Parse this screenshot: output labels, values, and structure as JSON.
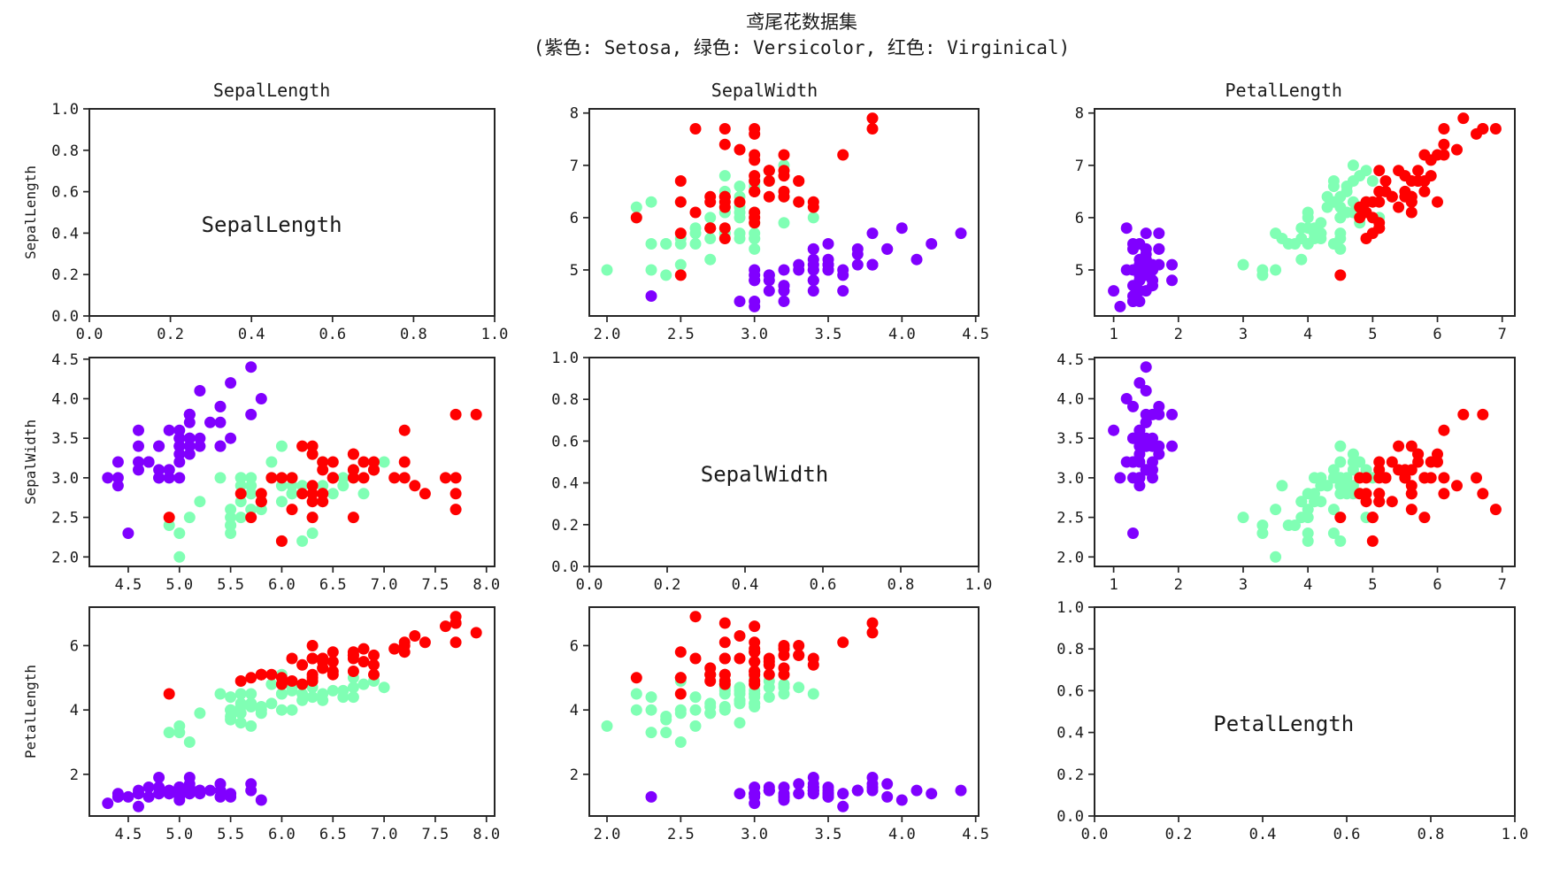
{
  "figure": {
    "background": "#ffffff",
    "text_color": "#1a1a1a",
    "axis_color": "#262626"
  },
  "chart_data": {
    "type": "scatter",
    "variant": "pairplot-matrix-3x3",
    "title": "鸢尾花数据集",
    "subtitle": "(紫色: Setosa, 绿色: Versicolor, 红色: Virginical)",
    "features": [
      "SepalLength",
      "SepalWidth",
      "PetalLength"
    ],
    "column_titles": [
      "SepalLength",
      "SepalWidth",
      "PetalLength"
    ],
    "row_labels": [
      "SepalLength",
      "SepalWidth",
      "PetalLength"
    ],
    "diagonal_labels": [
      "SepalLength",
      "SepalWidth",
      "PetalLength"
    ],
    "grid": "off",
    "legend_position": "none (colors explained in subtitle)",
    "marker_radius": 6.5,
    "axes": {
      "SepalLength": {
        "lim": [
          4.12,
          8.08
        ],
        "xticks": [
          4.5,
          5.0,
          5.5,
          6.0,
          6.5,
          7.0,
          7.5,
          8.0
        ],
        "xtick_labels": [
          "4.5",
          "5.0",
          "5.5",
          "6.0",
          "6.5",
          "7.0",
          "7.5",
          "8.0"
        ],
        "yticks": [
          5,
          6,
          7,
          8
        ],
        "ytick_labels": [
          "5",
          "6",
          "7",
          "8"
        ]
      },
      "SepalWidth": {
        "lim": [
          1.88,
          4.52
        ],
        "xticks": [
          2.0,
          2.5,
          3.0,
          3.5,
          4.0,
          4.5
        ],
        "xtick_labels": [
          "2.0",
          "2.5",
          "3.0",
          "3.5",
          "4.0",
          "4.5"
        ],
        "yticks": [
          2.0,
          2.5,
          3.0,
          3.5,
          4.0,
          4.5
        ],
        "ytick_labels": [
          "2.0",
          "2.5",
          "3.0",
          "3.5",
          "4.0",
          "4.5"
        ]
      },
      "PetalLength": {
        "lim": [
          0.705,
          7.195
        ],
        "xticks": [
          1,
          2,
          3,
          4,
          5,
          6,
          7
        ],
        "xtick_labels": [
          "1",
          "2",
          "3",
          "4",
          "5",
          "6",
          "7"
        ],
        "yticks": [
          2,
          4,
          6
        ],
        "ytick_labels": [
          "2",
          "4",
          "6"
        ]
      },
      "diagonal": {
        "lim": [
          0.0,
          1.0
        ],
        "ticks": [
          0.0,
          0.2,
          0.4,
          0.6,
          0.8,
          1.0
        ],
        "tick_labels": [
          "0.0",
          "0.2",
          "0.4",
          "0.6",
          "0.8",
          "1.0"
        ]
      }
    },
    "point_columns": [
      "SepalLength",
      "SepalWidth",
      "PetalLength"
    ],
    "series": [
      {
        "name": "Setosa",
        "color": "#8000FF",
        "points": [
          [
            5.1,
            3.5,
            1.4
          ],
          [
            4.9,
            3.0,
            1.4
          ],
          [
            4.7,
            3.2,
            1.3
          ],
          [
            4.6,
            3.1,
            1.5
          ],
          [
            5.0,
            3.6,
            1.4
          ],
          [
            5.4,
            3.9,
            1.7
          ],
          [
            4.6,
            3.4,
            1.4
          ],
          [
            5.0,
            3.4,
            1.5
          ],
          [
            4.4,
            2.9,
            1.4
          ],
          [
            4.9,
            3.1,
            1.5
          ],
          [
            5.4,
            3.7,
            1.5
          ],
          [
            4.8,
            3.4,
            1.6
          ],
          [
            4.8,
            3.0,
            1.4
          ],
          [
            4.3,
            3.0,
            1.1
          ],
          [
            5.8,
            4.0,
            1.2
          ],
          [
            5.7,
            4.4,
            1.5
          ],
          [
            5.4,
            3.9,
            1.3
          ],
          [
            5.1,
            3.5,
            1.4
          ],
          [
            5.7,
            3.8,
            1.7
          ],
          [
            5.1,
            3.8,
            1.5
          ],
          [
            5.4,
            3.4,
            1.7
          ],
          [
            5.1,
            3.7,
            1.5
          ],
          [
            4.6,
            3.6,
            1.0
          ],
          [
            5.1,
            3.3,
            1.7
          ],
          [
            4.8,
            3.4,
            1.9
          ],
          [
            5.0,
            3.0,
            1.6
          ],
          [
            5.0,
            3.4,
            1.6
          ],
          [
            5.2,
            3.5,
            1.5
          ],
          [
            5.2,
            3.4,
            1.4
          ],
          [
            4.7,
            3.2,
            1.6
          ],
          [
            4.8,
            3.1,
            1.6
          ],
          [
            5.4,
            3.4,
            1.5
          ],
          [
            5.2,
            4.1,
            1.5
          ],
          [
            5.5,
            4.2,
            1.4
          ],
          [
            4.9,
            3.1,
            1.5
          ],
          [
            5.0,
            3.2,
            1.2
          ],
          [
            5.5,
            3.5,
            1.3
          ],
          [
            4.9,
            3.6,
            1.4
          ],
          [
            4.4,
            3.0,
            1.3
          ],
          [
            5.1,
            3.4,
            1.5
          ],
          [
            5.0,
            3.5,
            1.3
          ],
          [
            4.5,
            2.3,
            1.3
          ],
          [
            4.4,
            3.2,
            1.3
          ],
          [
            5.0,
            3.5,
            1.6
          ],
          [
            5.1,
            3.8,
            1.9
          ],
          [
            4.8,
            3.0,
            1.4
          ],
          [
            5.1,
            3.8,
            1.6
          ],
          [
            4.6,
            3.2,
            1.4
          ],
          [
            5.3,
            3.7,
            1.5
          ],
          [
            5.0,
            3.3,
            1.4
          ]
        ]
      },
      {
        "name": "Versicolor",
        "color": "#80FFB4",
        "points": [
          [
            7.0,
            3.2,
            4.7
          ],
          [
            6.4,
            3.2,
            4.5
          ],
          [
            6.9,
            3.1,
            4.9
          ],
          [
            5.5,
            2.3,
            4.0
          ],
          [
            6.5,
            2.8,
            4.6
          ],
          [
            5.7,
            2.8,
            4.5
          ],
          [
            6.3,
            3.3,
            4.7
          ],
          [
            4.9,
            2.4,
            3.3
          ],
          [
            6.6,
            2.9,
            4.6
          ],
          [
            5.2,
            2.7,
            3.9
          ],
          [
            5.0,
            2.0,
            3.5
          ],
          [
            5.9,
            3.0,
            4.2
          ],
          [
            6.0,
            2.2,
            4.0
          ],
          [
            6.1,
            2.9,
            4.7
          ],
          [
            5.6,
            2.9,
            3.6
          ],
          [
            6.7,
            3.1,
            4.4
          ],
          [
            5.6,
            3.0,
            4.5
          ],
          [
            5.8,
            2.7,
            4.1
          ],
          [
            6.2,
            2.2,
            4.5
          ],
          [
            5.6,
            2.5,
            3.9
          ],
          [
            5.9,
            3.2,
            4.8
          ],
          [
            6.1,
            2.8,
            4.0
          ],
          [
            6.3,
            2.5,
            4.9
          ],
          [
            6.1,
            2.8,
            4.7
          ],
          [
            6.4,
            2.9,
            4.3
          ],
          [
            6.6,
            3.0,
            4.4
          ],
          [
            6.8,
            2.8,
            4.8
          ],
          [
            6.7,
            3.0,
            5.0
          ],
          [
            6.0,
            2.9,
            4.5
          ],
          [
            5.7,
            2.6,
            3.5
          ],
          [
            5.5,
            2.4,
            3.8
          ],
          [
            5.5,
            2.4,
            3.7
          ],
          [
            5.8,
            2.7,
            3.9
          ],
          [
            6.0,
            2.7,
            5.1
          ],
          [
            5.4,
            3.0,
            4.5
          ],
          [
            6.0,
            3.4,
            4.5
          ],
          [
            6.7,
            3.1,
            4.7
          ],
          [
            6.3,
            2.3,
            4.4
          ],
          [
            5.6,
            3.0,
            4.1
          ],
          [
            5.5,
            2.5,
            4.0
          ],
          [
            5.5,
            2.6,
            4.4
          ],
          [
            6.1,
            3.0,
            4.6
          ],
          [
            5.8,
            2.6,
            4.0
          ],
          [
            5.0,
            2.3,
            3.3
          ],
          [
            5.6,
            2.7,
            4.2
          ],
          [
            5.7,
            3.0,
            4.2
          ],
          [
            5.7,
            2.9,
            4.2
          ],
          [
            6.2,
            2.9,
            4.3
          ],
          [
            5.1,
            2.5,
            3.0
          ],
          [
            5.7,
            2.8,
            4.1
          ]
        ]
      },
      {
        "name": "Virginical",
        "color": "#FF0000",
        "points": [
          [
            6.3,
            3.3,
            6.0
          ],
          [
            5.8,
            2.7,
            5.1
          ],
          [
            7.1,
            3.0,
            5.9
          ],
          [
            6.3,
            2.9,
            5.6
          ],
          [
            6.5,
            3.0,
            5.8
          ],
          [
            7.6,
            3.0,
            6.6
          ],
          [
            4.9,
            2.5,
            4.5
          ],
          [
            7.3,
            2.9,
            6.3
          ],
          [
            6.7,
            2.5,
            5.8
          ],
          [
            7.2,
            3.6,
            6.1
          ],
          [
            6.5,
            3.2,
            5.1
          ],
          [
            6.4,
            2.7,
            5.3
          ],
          [
            6.8,
            3.0,
            5.5
          ],
          [
            5.7,
            2.5,
            5.0
          ],
          [
            5.8,
            2.8,
            5.1
          ],
          [
            6.4,
            3.2,
            5.3
          ],
          [
            6.5,
            3.0,
            5.5
          ],
          [
            7.7,
            3.8,
            6.7
          ],
          [
            7.7,
            2.6,
            6.9
          ],
          [
            6.0,
            2.2,
            5.0
          ],
          [
            6.9,
            3.2,
            5.7
          ],
          [
            5.6,
            2.8,
            4.9
          ],
          [
            7.7,
            2.8,
            6.7
          ],
          [
            6.3,
            2.7,
            4.9
          ],
          [
            6.7,
            3.3,
            5.7
          ],
          [
            7.2,
            3.2,
            6.0
          ],
          [
            6.2,
            2.8,
            4.8
          ],
          [
            6.1,
            3.0,
            4.9
          ],
          [
            6.4,
            2.8,
            5.6
          ],
          [
            7.2,
            3.0,
            5.8
          ],
          [
            7.4,
            2.8,
            6.1
          ],
          [
            7.9,
            3.8,
            6.4
          ],
          [
            6.4,
            2.8,
            5.6
          ],
          [
            6.3,
            2.8,
            5.1
          ],
          [
            6.1,
            2.6,
            5.6
          ],
          [
            7.7,
            3.0,
            6.1
          ],
          [
            6.3,
            3.4,
            5.6
          ],
          [
            6.4,
            3.1,
            5.5
          ],
          [
            6.0,
            3.0,
            4.8
          ],
          [
            6.9,
            3.1,
            5.4
          ],
          [
            6.7,
            3.1,
            5.6
          ],
          [
            6.9,
            3.1,
            5.1
          ],
          [
            5.8,
            2.7,
            5.1
          ],
          [
            6.8,
            3.2,
            5.9
          ],
          [
            6.7,
            3.3,
            5.7
          ],
          [
            6.7,
            3.0,
            5.2
          ],
          [
            6.3,
            2.5,
            5.0
          ],
          [
            6.5,
            3.0,
            5.2
          ],
          [
            6.2,
            3.4,
            5.4
          ],
          [
            5.9,
            3.0,
            5.1
          ]
        ]
      }
    ]
  }
}
